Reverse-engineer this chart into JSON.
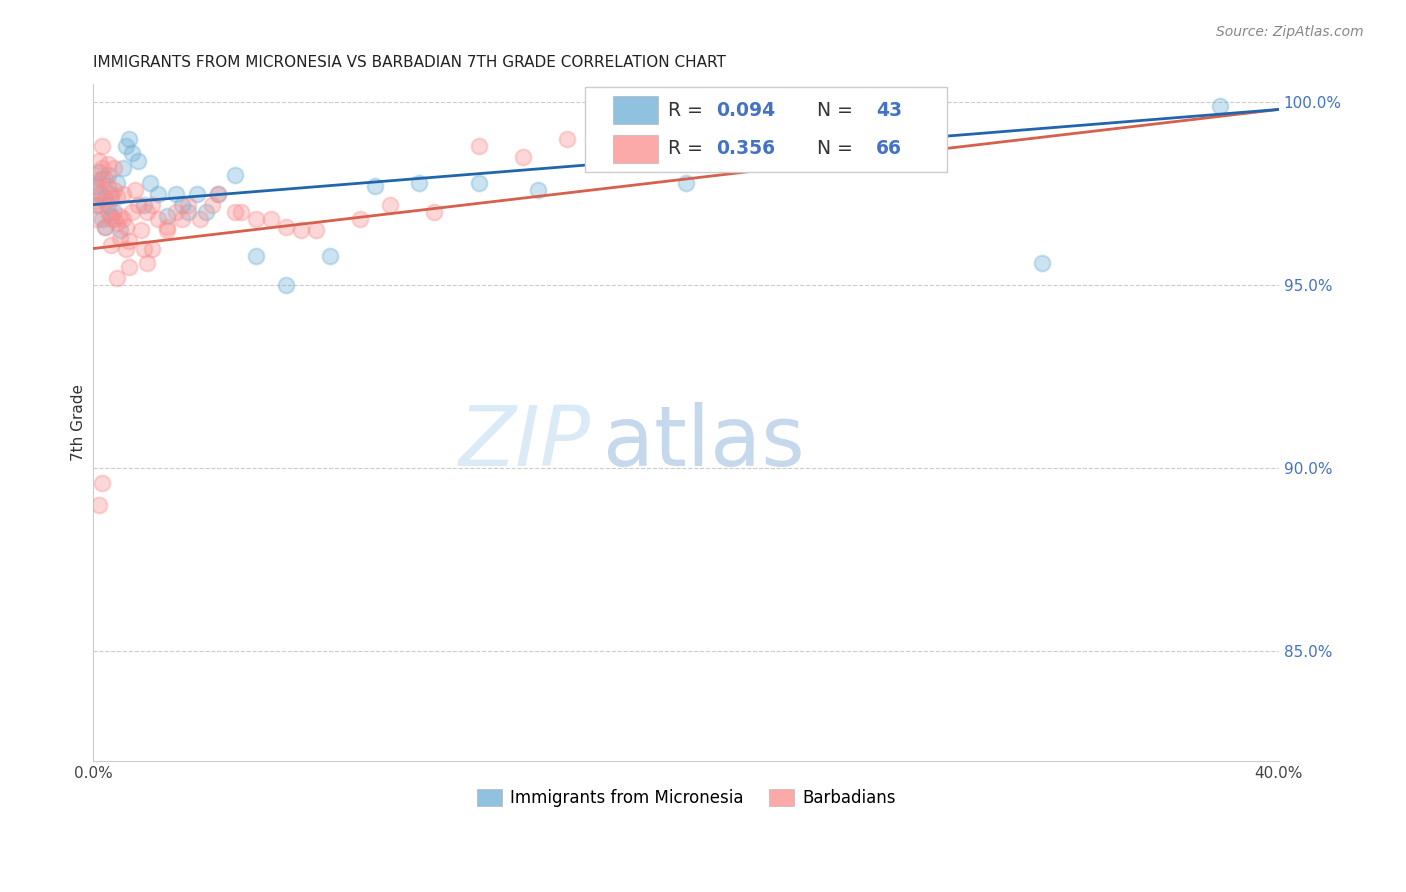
{
  "title": "IMMIGRANTS FROM MICRONESIA VS BARBADIAN 7TH GRADE CORRELATION CHART",
  "source": "Source: ZipAtlas.com",
  "ylabel": "7th Grade",
  "xlim": [
    0.0,
    0.4
  ],
  "ylim": [
    0.82,
    1.005
  ],
  "xticks": [
    0.0,
    0.05,
    0.1,
    0.15,
    0.2,
    0.25,
    0.3,
    0.35,
    0.4
  ],
  "xticklabels": [
    "0.0%",
    "",
    "",
    "",
    "",
    "",
    "",
    "",
    "40.0%"
  ],
  "yticks": [
    0.85,
    0.9,
    0.95,
    1.0
  ],
  "yticklabels": [
    "85.0%",
    "90.0%",
    "95.0%",
    "100.0%"
  ],
  "blue_color": "#6baed6",
  "pink_color": "#fc8d8d",
  "blue_line_color": "#2166ac",
  "pink_line_color": "#d6604d",
  "legend_label_blue": "Immigrants from Micronesia",
  "legend_label_pink": "Barbadians",
  "blue_R": "0.094",
  "blue_N": "43",
  "pink_R": "0.356",
  "pink_N": "66",
  "blue_x": [
    0.001,
    0.001,
    0.002,
    0.002,
    0.003,
    0.003,
    0.004,
    0.004,
    0.005,
    0.005,
    0.006,
    0.006,
    0.007,
    0.008,
    0.009,
    0.01,
    0.011,
    0.012,
    0.013,
    0.015,
    0.017,
    0.019,
    0.022,
    0.025,
    0.028,
    0.03,
    0.032,
    0.035,
    0.038,
    0.042,
    0.048,
    0.055,
    0.065,
    0.08,
    0.095,
    0.11,
    0.13,
    0.15,
    0.175,
    0.2,
    0.25,
    0.32,
    0.38
  ],
  "blue_y": [
    0.977,
    0.972,
    0.981,
    0.975,
    0.979,
    0.968,
    0.974,
    0.966,
    0.972,
    0.98,
    0.969,
    0.975,
    0.97,
    0.978,
    0.965,
    0.982,
    0.988,
    0.99,
    0.986,
    0.984,
    0.972,
    0.978,
    0.975,
    0.969,
    0.975,
    0.972,
    0.97,
    0.975,
    0.97,
    0.975,
    0.98,
    0.958,
    0.95,
    0.958,
    0.977,
    0.978,
    0.978,
    0.976,
    0.99,
    0.978,
    0.984,
    0.956,
    0.999
  ],
  "pink_x": [
    0.001,
    0.001,
    0.001,
    0.002,
    0.002,
    0.002,
    0.003,
    0.003,
    0.003,
    0.004,
    0.004,
    0.004,
    0.005,
    0.005,
    0.005,
    0.006,
    0.006,
    0.006,
    0.007,
    0.007,
    0.007,
    0.008,
    0.008,
    0.009,
    0.009,
    0.01,
    0.01,
    0.011,
    0.011,
    0.012,
    0.013,
    0.014,
    0.015,
    0.016,
    0.017,
    0.018,
    0.02,
    0.022,
    0.025,
    0.028,
    0.032,
    0.036,
    0.042,
    0.048,
    0.055,
    0.065,
    0.075,
    0.09,
    0.1,
    0.115,
    0.13,
    0.145,
    0.16,
    0.175,
    0.018,
    0.02,
    0.025,
    0.03,
    0.04,
    0.05,
    0.06,
    0.07,
    0.012,
    0.008,
    0.003,
    0.002
  ],
  "pink_y": [
    0.978,
    0.973,
    0.968,
    0.984,
    0.979,
    0.972,
    0.988,
    0.982,
    0.975,
    0.979,
    0.973,
    0.966,
    0.983,
    0.977,
    0.97,
    0.974,
    0.968,
    0.961,
    0.982,
    0.976,
    0.968,
    0.974,
    0.967,
    0.969,
    0.963,
    0.975,
    0.968,
    0.966,
    0.96,
    0.962,
    0.97,
    0.976,
    0.972,
    0.965,
    0.96,
    0.97,
    0.972,
    0.968,
    0.966,
    0.97,
    0.972,
    0.968,
    0.975,
    0.97,
    0.968,
    0.966,
    0.965,
    0.968,
    0.972,
    0.97,
    0.988,
    0.985,
    0.99,
    0.988,
    0.956,
    0.96,
    0.965,
    0.968,
    0.972,
    0.97,
    0.968,
    0.965,
    0.955,
    0.952,
    0.896,
    0.89
  ]
}
